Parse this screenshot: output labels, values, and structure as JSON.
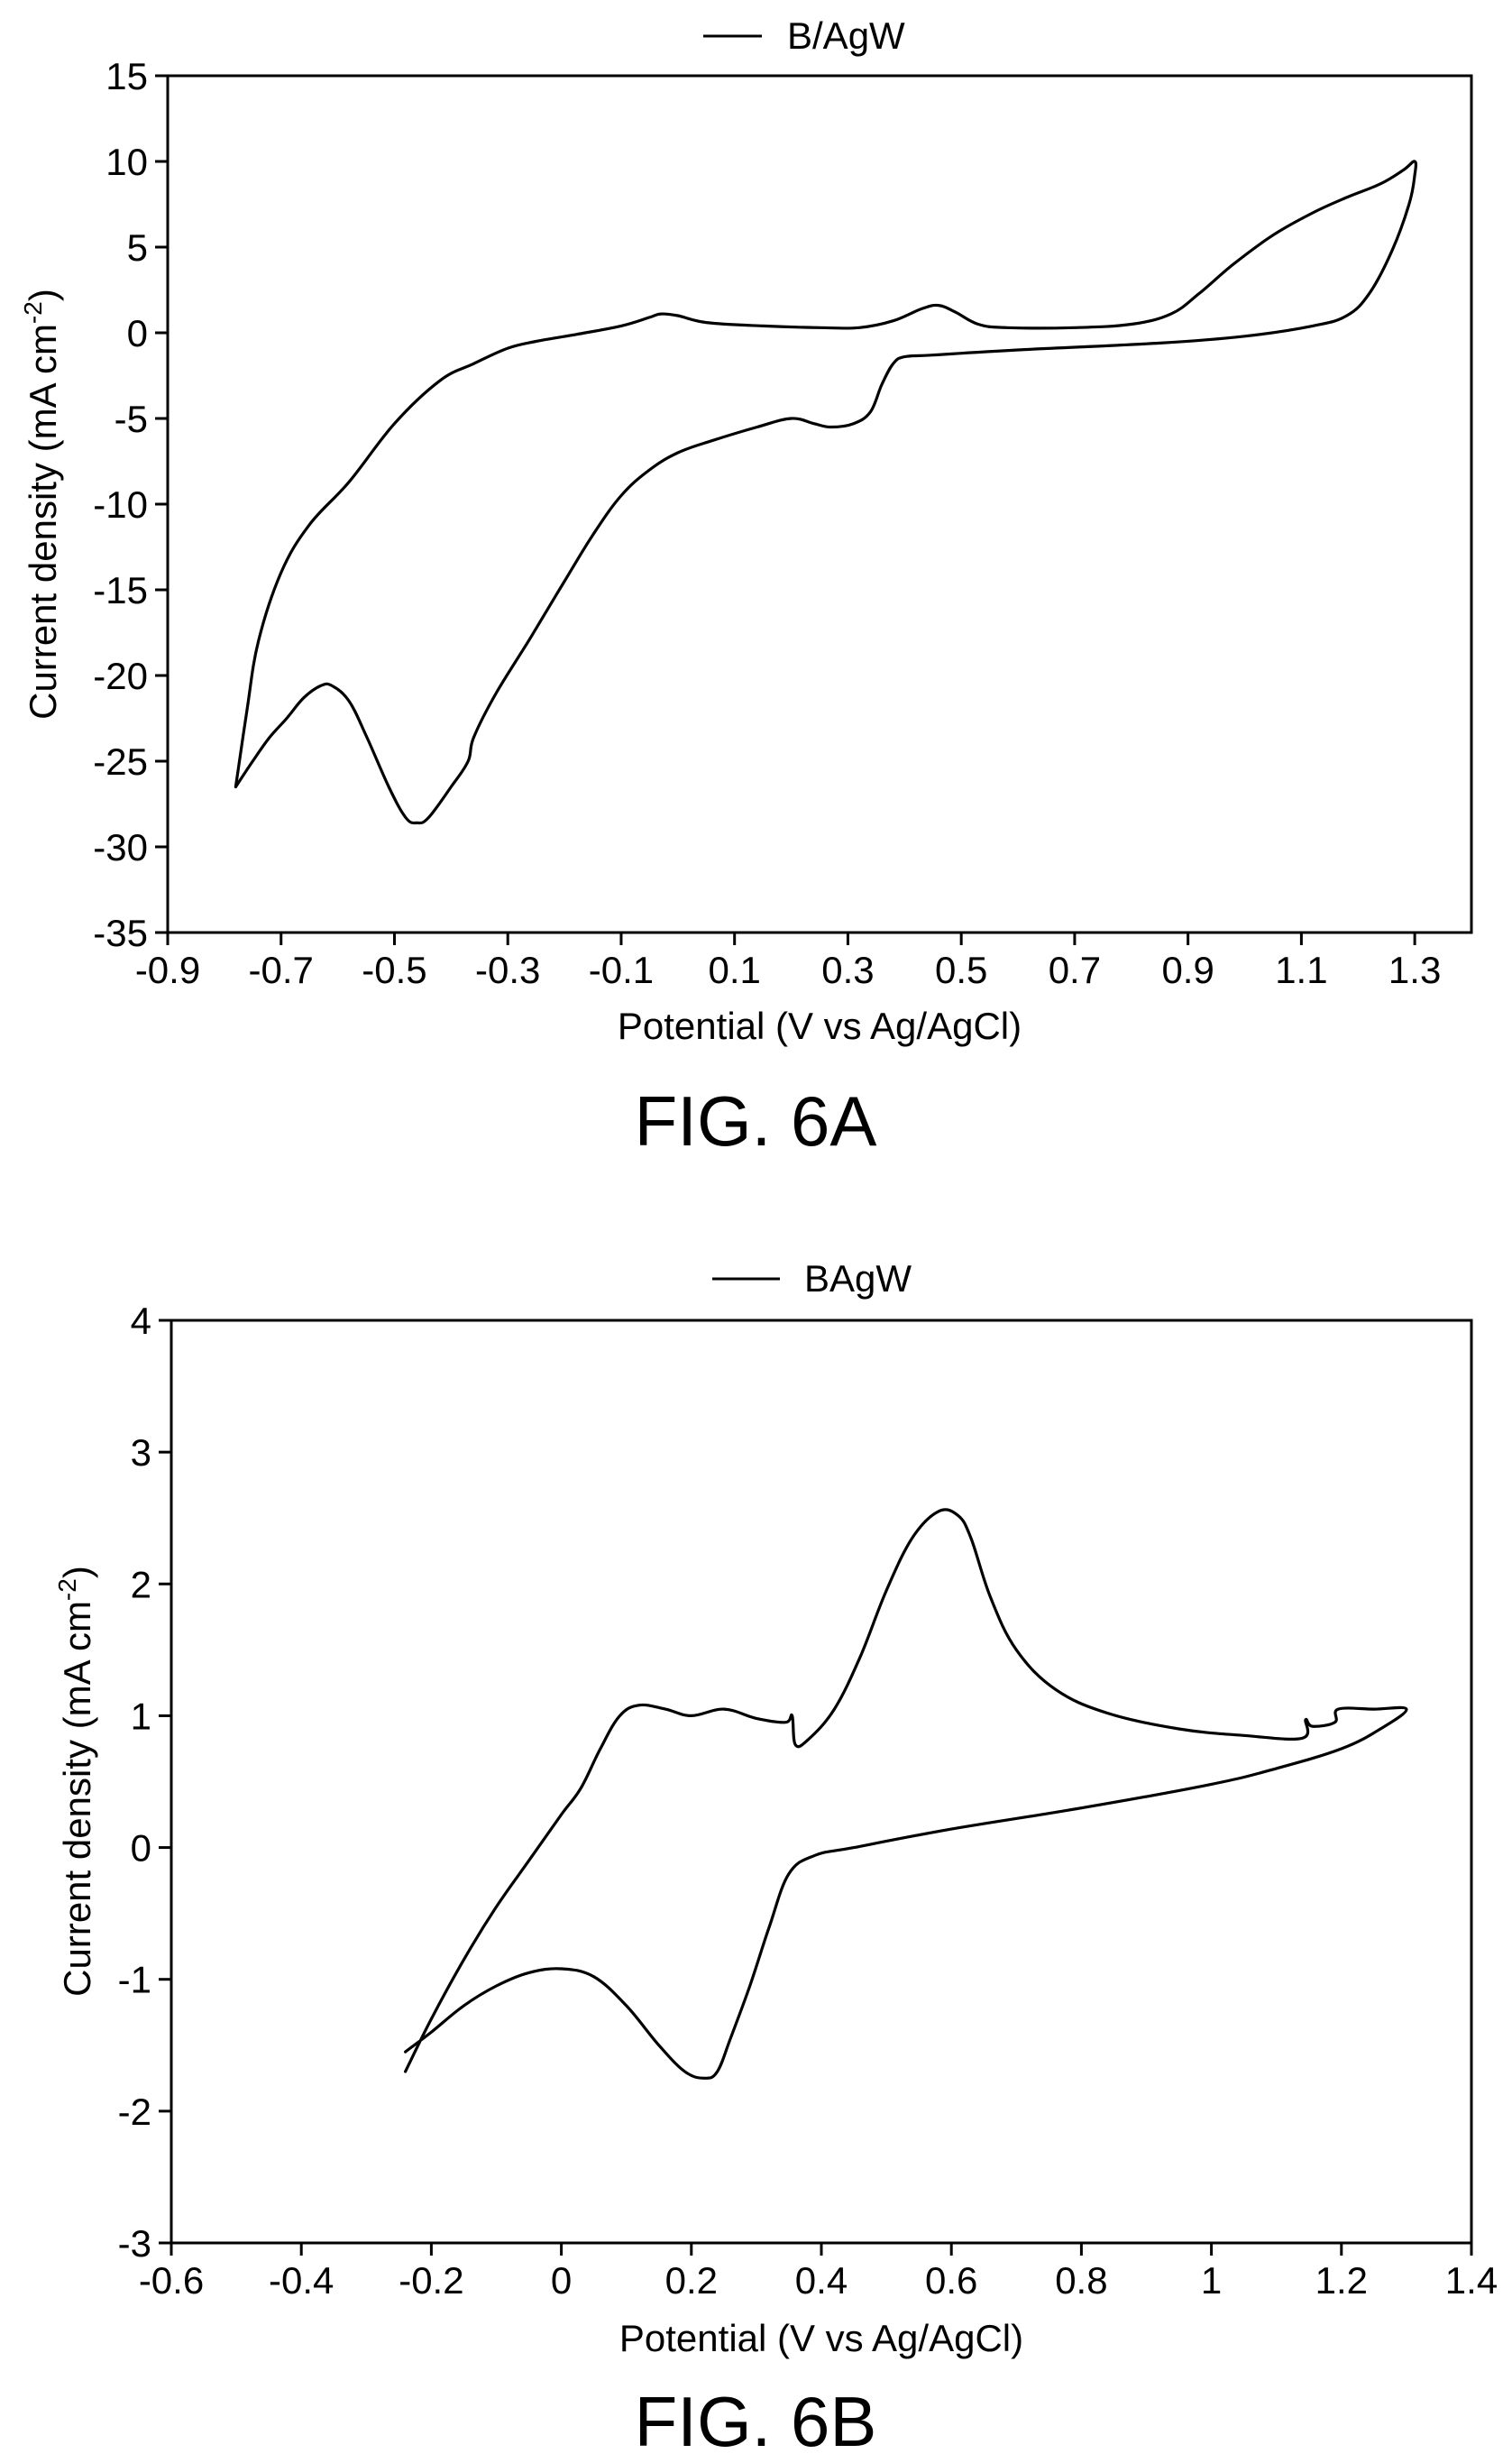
{
  "figures": [
    {
      "caption": "FIG. 6A",
      "chart_data": {
        "type": "line",
        "title": "",
        "xlabel": "Potential (V vs Ag/AgCl)",
        "ylabel": "Current density (mA cm",
        "ylabel_sup": "-2",
        "ylabel_close": ")",
        "xlim": [
          -0.9,
          1.4
        ],
        "ylim": [
          -35,
          15
        ],
        "xticks": [
          -0.9,
          -0.7,
          -0.5,
          -0.3,
          -0.1,
          0.1,
          0.3,
          0.5,
          0.7,
          0.9,
          1.1,
          1.3
        ],
        "xtick_labels": [
          "-0.9",
          "-0.7",
          "-0.5",
          "-0.3",
          "-0.1",
          "0.1",
          "0.3",
          "0.5",
          "0.7",
          "0.9",
          "1.1",
          "1.3"
        ],
        "yticks": [
          15,
          10,
          5,
          0,
          -5,
          -10,
          -15,
          -20,
          -25,
          -30,
          -35
        ],
        "ytick_labels": [
          "15",
          "10",
          "5",
          "0",
          "-5",
          "-10",
          "-15",
          "-20",
          "-25",
          "-30",
          "-35"
        ],
        "grid": false,
        "legend_position": "top-center",
        "series": [
          {
            "name": "B/AgW",
            "points": [
              [
                -0.78,
                -26.5
              ],
              [
                -0.76,
                -22
              ],
              [
                -0.74,
                -18
              ],
              [
                -0.7,
                -14
              ],
              [
                -0.65,
                -11.2
              ],
              [
                -0.58,
                -8.7
              ],
              [
                -0.5,
                -5.3
              ],
              [
                -0.42,
                -2.8
              ],
              [
                -0.36,
                -1.8
              ],
              [
                -0.3,
                -0.9
              ],
              [
                -0.25,
                -0.5
              ],
              [
                -0.18,
                -0.1
              ],
              [
                -0.1,
                0.4
              ],
              [
                -0.05,
                0.9
              ],
              [
                -0.03,
                1.1
              ],
              [
                0.0,
                1.0
              ],
              [
                0.05,
                0.6
              ],
              [
                0.15,
                0.4
              ],
              [
                0.25,
                0.3
              ],
              [
                0.32,
                0.3
              ],
              [
                0.38,
                0.7
              ],
              [
                0.43,
                1.4
              ],
              [
                0.46,
                1.6
              ],
              [
                0.49,
                1.2
              ],
              [
                0.53,
                0.5
              ],
              [
                0.58,
                0.3
              ],
              [
                0.7,
                0.3
              ],
              [
                0.8,
                0.5
              ],
              [
                0.87,
                1.1
              ],
              [
                0.92,
                2.3
              ],
              [
                0.98,
                4.0
              ],
              [
                1.05,
                5.7
              ],
              [
                1.12,
                7.0
              ],
              [
                1.18,
                7.9
              ],
              [
                1.24,
                8.7
              ],
              [
                1.28,
                9.5
              ],
              [
                1.3,
                10.0
              ],
              [
                1.3,
                9.2
              ],
              [
                1.29,
                7.5
              ],
              [
                1.26,
                4.8
              ],
              [
                1.22,
                2.3
              ],
              [
                1.18,
                1.0
              ],
              [
                1.12,
                0.4
              ],
              [
                1.0,
                -0.2
              ],
              [
                0.85,
                -0.6
              ],
              [
                0.6,
                -1.0
              ],
              [
                0.45,
                -1.3
              ],
              [
                0.4,
                -1.4
              ],
              [
                0.38,
                -1.8
              ],
              [
                0.36,
                -3.0
              ],
              [
                0.34,
                -4.6
              ],
              [
                0.31,
                -5.3
              ],
              [
                0.27,
                -5.5
              ],
              [
                0.24,
                -5.3
              ],
              [
                0.2,
                -5.0
              ],
              [
                0.14,
                -5.5
              ],
              [
                0.06,
                -6.3
              ],
              [
                0.0,
                -7.0
              ],
              [
                -0.05,
                -8.0
              ],
              [
                -0.1,
                -9.5
              ],
              [
                -0.15,
                -11.8
              ],
              [
                -0.2,
                -14.5
              ],
              [
                -0.26,
                -17.8
              ],
              [
                -0.32,
                -21.0
              ],
              [
                -0.36,
                -23.6
              ],
              [
                -0.37,
                -25.0
              ],
              [
                -0.4,
                -26.5
              ],
              [
                -0.44,
                -28.3
              ],
              [
                -0.46,
                -28.6
              ],
              [
                -0.48,
                -28.3
              ],
              [
                -0.51,
                -26.5
              ],
              [
                -0.55,
                -23.5
              ],
              [
                -0.58,
                -21.5
              ],
              [
                -0.61,
                -20.6
              ],
              [
                -0.63,
                -20.6
              ],
              [
                -0.66,
                -21.3
              ],
              [
                -0.69,
                -22.5
              ],
              [
                -0.72,
                -23.6
              ],
              [
                -0.75,
                -25.0
              ],
              [
                -0.78,
                -26.5
              ]
            ]
          }
        ]
      }
    },
    {
      "caption": "FIG. 6B",
      "chart_data": {
        "type": "line",
        "title": "",
        "xlabel": "Potential (V vs Ag/AgCl)",
        "ylabel": "Current density (mA cm",
        "ylabel_sup": "-2",
        "ylabel_close": ")",
        "xlim": [
          -0.6,
          1.4
        ],
        "ylim": [
          -3,
          4
        ],
        "xticks": [
          -0.6,
          -0.4,
          -0.2,
          0,
          0.2,
          0.4,
          0.6,
          0.8,
          1,
          1.2,
          1.4
        ],
        "xtick_labels": [
          "-0.6",
          "-0.4",
          "-0.2",
          "0",
          "0.2",
          "0.4",
          "0.6",
          "0.8",
          "1",
          "1.2",
          "1.4"
        ],
        "yticks": [
          4,
          3,
          2,
          1,
          0,
          -1,
          -2,
          -3
        ],
        "ytick_labels": [
          "4",
          "3",
          "2",
          "1",
          "0",
          "-1",
          "-2",
          "-3"
        ],
        "grid": false,
        "legend_position": "top-center",
        "series": [
          {
            "name": "BAgW",
            "points": [
              [
                -0.24,
                -1.7
              ],
              [
                -0.2,
                -1.3
              ],
              [
                -0.15,
                -0.85
              ],
              [
                -0.1,
                -0.45
              ],
              [
                -0.05,
                -0.1
              ],
              [
                0.0,
                0.25
              ],
              [
                0.03,
                0.45
              ],
              [
                0.06,
                0.75
              ],
              [
                0.09,
                1.0
              ],
              [
                0.12,
                1.08
              ],
              [
                0.16,
                1.05
              ],
              [
                0.2,
                1.0
              ],
              [
                0.25,
                1.05
              ],
              [
                0.3,
                0.98
              ],
              [
                0.345,
                0.95
              ],
              [
                0.355,
                1.0
              ],
              [
                0.36,
                0.78
              ],
              [
                0.38,
                0.82
              ],
              [
                0.42,
                1.05
              ],
              [
                0.46,
                1.45
              ],
              [
                0.5,
                1.95
              ],
              [
                0.54,
                2.35
              ],
              [
                0.58,
                2.55
              ],
              [
                0.61,
                2.52
              ],
              [
                0.63,
                2.35
              ],
              [
                0.66,
                1.9
              ],
              [
                0.7,
                1.5
              ],
              [
                0.76,
                1.2
              ],
              [
                0.84,
                1.02
              ],
              [
                0.95,
                0.9
              ],
              [
                1.05,
                0.85
              ],
              [
                1.14,
                0.83
              ],
              [
                1.145,
                0.97
              ],
              [
                1.155,
                0.92
              ],
              [
                1.19,
                0.95
              ],
              [
                1.195,
                1.05
              ],
              [
                1.25,
                1.05
              ],
              [
                1.3,
                1.05
              ],
              [
                1.26,
                0.9
              ],
              [
                1.2,
                0.75
              ],
              [
                1.1,
                0.6
              ],
              [
                1.0,
                0.48
              ],
              [
                0.8,
                0.3
              ],
              [
                0.6,
                0.14
              ],
              [
                0.45,
                0.0
              ],
              [
                0.39,
                -0.06
              ],
              [
                0.35,
                -0.2
              ],
              [
                0.32,
                -0.6
              ],
              [
                0.29,
                -1.05
              ],
              [
                0.26,
                -1.45
              ],
              [
                0.24,
                -1.7
              ],
              [
                0.22,
                -1.75
              ],
              [
                0.19,
                -1.7
              ],
              [
                0.15,
                -1.5
              ],
              [
                0.1,
                -1.2
              ],
              [
                0.05,
                -0.98
              ],
              [
                0.0,
                -0.92
              ],
              [
                -0.05,
                -0.95
              ],
              [
                -0.1,
                -1.05
              ],
              [
                -0.15,
                -1.2
              ],
              [
                -0.2,
                -1.4
              ],
              [
                -0.24,
                -1.55
              ]
            ]
          }
        ]
      }
    }
  ]
}
